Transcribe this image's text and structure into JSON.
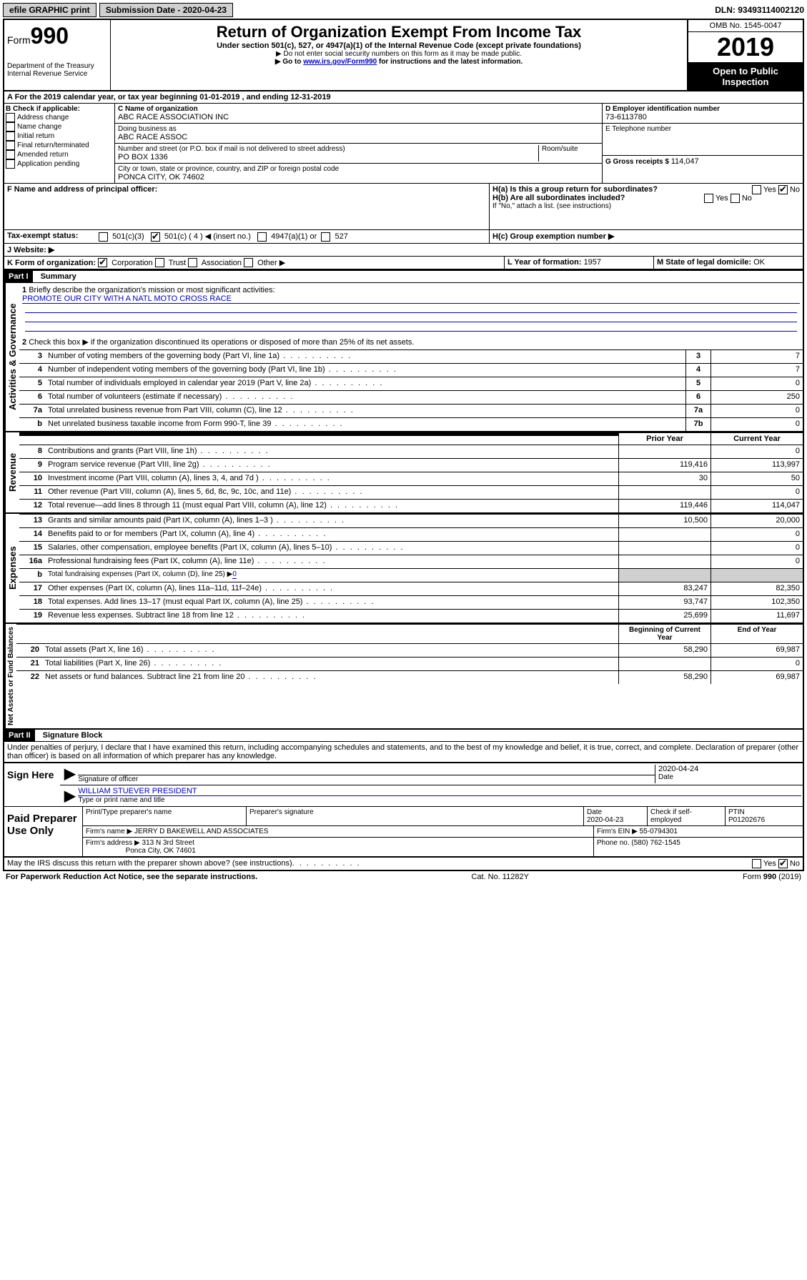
{
  "top": {
    "efile": "efile GRAPHIC print",
    "submission_label": "Submission Date - 2020-04-23",
    "dln": "DLN: 93493114002120"
  },
  "header": {
    "form_word": "Form",
    "form_num": "990",
    "dept": "Department of the Treasury",
    "irs": "Internal Revenue Service",
    "title": "Return of Organization Exempt From Income Tax",
    "sub1": "Under section 501(c), 527, or 4947(a)(1) of the Internal Revenue Code (except private foundations)",
    "sub2": "▶ Do not enter social security numbers on this form as it may be made public.",
    "sub3_pre": "▶ Go to ",
    "sub3_link": "www.irs.gov/Form990",
    "sub3_post": " for instructions and the latest information.",
    "omb": "OMB No. 1545-0047",
    "year": "2019",
    "open": "Open to Public Inspection"
  },
  "section_a": "A For the 2019 calendar year, or tax year beginning 01-01-2019    , and ending 12-31-2019",
  "col_b": {
    "label": "B Check if applicable:",
    "items": [
      "Address change",
      "Name change",
      "Initial return",
      "Final return/terminated",
      "Amended return",
      "Application pending"
    ]
  },
  "col_c": {
    "name_label": "C Name of organization",
    "name": "ABC RACE ASSOCIATION INC",
    "dba_label": "Doing business as",
    "dba": "ABC RACE ASSOC",
    "addr_label": "Number and street (or P.O. box if mail is not delivered to street address)",
    "room_label": "Room/suite",
    "addr": "PO BOX 1336",
    "city_label": "City or town, state or province, country, and ZIP or foreign postal code",
    "city": "PONCA CITY, OK  74602"
  },
  "col_d": {
    "label": "D Employer identification number",
    "ein": "73-6113780",
    "tel_label": "E Telephone number",
    "gross_label": "G Gross receipts $ ",
    "gross": "114,047"
  },
  "f_label": "F  Name and address of principal officer:",
  "h": {
    "a": "H(a)  Is this a group return for subordinates?",
    "b": "H(b)  Are all subordinates included?",
    "b_note": "If \"No,\" attach a list. (see instructions)",
    "c": "H(c)  Group exemption number ▶"
  },
  "i": {
    "label": "Tax-exempt status:",
    "opt1": "501(c)(3)",
    "opt2": "501(c) ( 4 ) ◀ (insert no.)",
    "opt3": "4947(a)(1) or",
    "opt4": "527"
  },
  "j": "J  Website: ▶",
  "k": {
    "label": "K Form of organization:",
    "corp": "Corporation",
    "trust": "Trust",
    "assoc": "Association",
    "other": "Other ▶"
  },
  "l": {
    "label": "L Year of formation: ",
    "val": "1957"
  },
  "m": {
    "label": "M State of legal domicile: ",
    "val": "OK"
  },
  "part1": {
    "header": "Part I",
    "title": "Summary",
    "q1": "Briefly describe the organization's mission or most significant activities:",
    "mission": "PROMOTE OUR CITY WITH A NATL MOTO CROSS RACE",
    "q2": "Check this box ▶         if the organization discontinued its operations or disposed of more than 25% of its net assets.",
    "lines_single": [
      {
        "n": "3",
        "t": "Number of voting members of the governing body (Part VI, line 1a)",
        "tag": "3",
        "v": "7"
      },
      {
        "n": "4",
        "t": "Number of independent voting members of the governing body (Part VI, line 1b)",
        "tag": "4",
        "v": "7"
      },
      {
        "n": "5",
        "t": "Total number of individuals employed in calendar year 2019 (Part V, line 2a)",
        "tag": "5",
        "v": "0"
      },
      {
        "n": "6",
        "t": "Total number of volunteers (estimate if necessary)",
        "tag": "6",
        "v": "250"
      },
      {
        "n": "7a",
        "t": "Total unrelated business revenue from Part VIII, column (C), line 12",
        "tag": "7a",
        "v": "0"
      },
      {
        "n": "b",
        "t": "Net unrelated business taxable income from Form 990-T, line 39",
        "tag": "7b",
        "v": "0"
      }
    ],
    "col_headers": {
      "p": "Prior Year",
      "c": "Current Year"
    },
    "revenue": [
      {
        "n": "8",
        "t": "Contributions and grants (Part VIII, line 1h)",
        "p": "",
        "c": "0"
      },
      {
        "n": "9",
        "t": "Program service revenue (Part VIII, line 2g)",
        "p": "119,416",
        "c": "113,997"
      },
      {
        "n": "10",
        "t": "Investment income (Part VIII, column (A), lines 3, 4, and 7d )",
        "p": "30",
        "c": "50"
      },
      {
        "n": "11",
        "t": "Other revenue (Part VIII, column (A), lines 5, 6d, 8c, 9c, 10c, and 11e)",
        "p": "",
        "c": "0"
      },
      {
        "n": "12",
        "t": "Total revenue—add lines 8 through 11 (must equal Part VIII, column (A), line 12)",
        "p": "119,446",
        "c": "114,047"
      }
    ],
    "expenses": [
      {
        "n": "13",
        "t": "Grants and similar amounts paid (Part IX, column (A), lines 1–3 )",
        "p": "10,500",
        "c": "20,000"
      },
      {
        "n": "14",
        "t": "Benefits paid to or for members (Part IX, column (A), line 4)",
        "p": "",
        "c": "0"
      },
      {
        "n": "15",
        "t": "Salaries, other compensation, employee benefits (Part IX, column (A), lines 5–10)",
        "p": "",
        "c": "0"
      },
      {
        "n": "16a",
        "t": "Professional fundraising fees (Part IX, column (A), line 11e)",
        "p": "",
        "c": "0"
      }
    ],
    "line_b": {
      "n": "b",
      "t": "Total fundraising expenses (Part IX, column (D), line 25) ▶",
      "v": "0"
    },
    "expenses2": [
      {
        "n": "17",
        "t": "Other expenses (Part IX, column (A), lines 11a–11d, 11f–24e)",
        "p": "83,247",
        "c": "82,350"
      },
      {
        "n": "18",
        "t": "Total expenses. Add lines 13–17 (must equal Part IX, column (A), line 25)",
        "p": "93,747",
        "c": "102,350"
      },
      {
        "n": "19",
        "t": "Revenue less expenses. Subtract line 18 from line 12",
        "p": "25,699",
        "c": "11,697"
      }
    ],
    "net_headers": {
      "p": "Beginning of Current Year",
      "c": "End of Year"
    },
    "netassets": [
      {
        "n": "20",
        "t": "Total assets (Part X, line 16)",
        "p": "58,290",
        "c": "69,987"
      },
      {
        "n": "21",
        "t": "Total liabilities (Part X, line 26)",
        "p": "",
        "c": "0"
      },
      {
        "n": "22",
        "t": "Net assets or fund balances. Subtract line 21 from line 20",
        "p": "58,290",
        "c": "69,987"
      }
    ],
    "vlabels": {
      "gov": "Activities & Governance",
      "rev": "Revenue",
      "exp": "Expenses",
      "net": "Net Assets or Fund Balances"
    }
  },
  "part2": {
    "header": "Part II",
    "title": "Signature Block",
    "decl": "Under penalties of perjury, I declare that I have examined this return, including accompanying schedules and statements, and to the best of my knowledge and belief, it is true, correct, and complete. Declaration of preparer (other than officer) is based on all information of which preparer has any knowledge.",
    "sign_here": "Sign Here",
    "sig_officer": "Signature of officer",
    "date": "Date",
    "date_val": "2020-04-24",
    "name_title": "WILLIAM STUEVER PRESIDENT",
    "name_label": "Type or print name and title",
    "paid": "Paid Preparer Use Only",
    "prep_name_label": "Print/Type preparer's name",
    "prep_sig_label": "Preparer's signature",
    "prep_date_label": "Date",
    "prep_date": "2020-04-23",
    "check_label": "Check         if self-employed",
    "ptin_label": "PTIN",
    "ptin": "P01202676",
    "firm_name_label": "Firm's name    ▶",
    "firm_name": "JERRY D BAKEWELL AND ASSOCIATES",
    "firm_ein_label": "Firm's EIN ▶",
    "firm_ein": "55-0794301",
    "firm_addr_label": "Firm's address ▶",
    "firm_addr1": "313 N 3rd Street",
    "firm_addr2": "Ponca City, OK  74601",
    "phone_label": "Phone no.",
    "phone": "(580) 762-1545",
    "discuss": "May the IRS discuss this return with the preparer shown above? (see instructions)"
  },
  "footer": {
    "pra": "For Paperwork Reduction Act Notice, see the separate instructions.",
    "cat": "Cat. No. 11282Y",
    "form": "Form 990 (2019)"
  },
  "yes": "Yes",
  "no": "No"
}
